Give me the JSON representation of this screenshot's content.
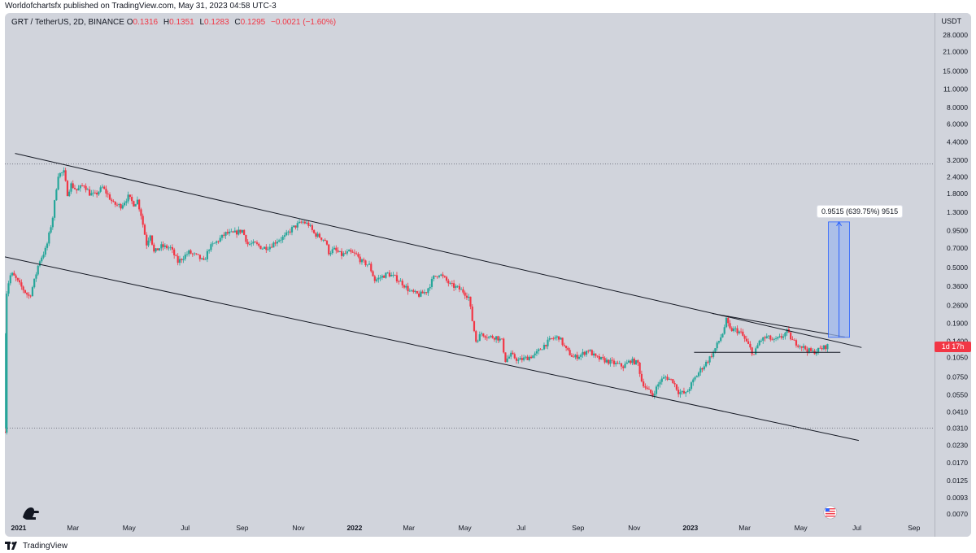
{
  "publisher_line": "Worldofchartsfx published on TradingView.com, May 31, 2023 04:58 UTC-3",
  "footer_text": "TradingView",
  "icons": {
    "footer_logo": "tradingview-logo-icon",
    "chart_logo": "dinosaur-logo-icon",
    "flag": "us-flag-icon"
  },
  "colors": {
    "up": "#26a69a",
    "down": "#f23645",
    "chart_bg": "#d1d4dc",
    "trendline": "#131722",
    "measure_fill": "#9fb8ec",
    "measure_line": "#2962ff"
  },
  "chart_data": {
    "type": "candlestick",
    "symbol_line": {
      "symbol": "GRT / TetherUS, 2D, BINANCE",
      "open_label": "O",
      "open": "0.1316",
      "high_label": "H",
      "high": "0.1351",
      "low_label": "L",
      "low": "0.1283",
      "close_label": "C",
      "close": "0.1295",
      "change": "−0.0021 (−1.60%)"
    },
    "currency": "USDT",
    "y_scale": "log",
    "y_ticks": [
      "28.0000",
      "21.0000",
      "15.0000",
      "11.0000",
      "8.0000",
      "6.0000",
      "4.4000",
      "3.2000",
      "2.4000",
      "1.8000",
      "1.3000",
      "0.9500",
      "0.7000",
      "0.5000",
      "0.3600",
      "0.2600",
      "0.1900",
      "0.1400",
      "0.1050",
      "0.0750",
      "0.0550",
      "0.0410",
      "0.0310",
      "0.0230",
      "0.0170",
      "0.0125",
      "0.0093",
      "0.0070"
    ],
    "x_ticks": [
      "2021",
      "Mar",
      "May",
      "Jul",
      "Sep",
      "Nov",
      "2022",
      "Mar",
      "May",
      "Jul",
      "Sep",
      "Nov",
      "2023",
      "Mar",
      "May",
      "Jul",
      "Sep"
    ],
    "x_tick_dates": [
      "2021-01-01",
      "2021-03-01",
      "2021-05-01",
      "2021-07-01",
      "2021-09-01",
      "2021-11-01",
      "2022-01-01",
      "2022-03-01",
      "2022-05-01",
      "2022-07-01",
      "2022-09-01",
      "2022-11-01",
      "2023-01-01",
      "2023-03-01",
      "2023-05-01",
      "2023-07-01",
      "2023-09-01"
    ],
    "x_range": [
      "2020-12-17",
      "2023-09-18"
    ],
    "last_price_badge": "1d 17h",
    "horizontal_levels": [
      3.0,
      0.031
    ],
    "trendlines": [
      {
        "from": [
          "2020-12-28",
          3.6
        ],
        "to": [
          "2023-07-06",
          0.125
        ]
      },
      {
        "from": [
          "2020-12-17",
          0.6
        ],
        "to": [
          "2023-07-03",
          0.025
        ]
      },
      {
        "from": [
          "2023-01-25",
          0.225
        ],
        "to": [
          "2023-06-18",
          0.15
        ]
      },
      {
        "from": [
          "2023-01-05",
          0.115
        ],
        "to": [
          "2023-06-13",
          0.115
        ]
      }
    ],
    "measure_projection": {
      "label": "0.9515 (639.75%) 9515",
      "from_date": "2023-05-31",
      "to_date": "2023-06-23",
      "from_price": 0.149,
      "to_price": 1.1
    },
    "price_path": [
      [
        "2020-12-17",
        0.03
      ],
      [
        "2020-12-18",
        0.3
      ],
      [
        "2020-12-22",
        0.42
      ],
      [
        "2020-12-24",
        0.45
      ],
      [
        "2020-12-28",
        0.42
      ],
      [
        "2021-01-01",
        0.38
      ],
      [
        "2021-01-09",
        0.32
      ],
      [
        "2021-01-13",
        0.3
      ],
      [
        "2021-01-19",
        0.42
      ],
      [
        "2021-01-23",
        0.55
      ],
      [
        "2021-01-31",
        0.7
      ],
      [
        "2021-02-04",
        0.95
      ],
      [
        "2021-02-07",
        1.2
      ],
      [
        "2021-02-11",
        2.0
      ],
      [
        "2021-02-13",
        2.5
      ],
      [
        "2021-02-19",
        2.6
      ],
      [
        "2021-02-23",
        1.8
      ],
      [
        "2021-02-27",
        2.1
      ],
      [
        "2021-03-05",
        1.9
      ],
      [
        "2021-03-13",
        2.1
      ],
      [
        "2021-03-19",
        1.8
      ],
      [
        "2021-03-25",
        1.75
      ],
      [
        "2021-04-02",
        2.0
      ],
      [
        "2021-04-08",
        1.75
      ],
      [
        "2021-04-14",
        1.5
      ],
      [
        "2021-04-22",
        1.45
      ],
      [
        "2021-04-30",
        1.7
      ],
      [
        "2021-05-06",
        1.5
      ],
      [
        "2021-05-10",
        1.6
      ],
      [
        "2021-05-14",
        1.25
      ],
      [
        "2021-05-20",
        0.75
      ],
      [
        "2021-05-24",
        0.9
      ],
      [
        "2021-05-28",
        0.65
      ],
      [
        "2021-06-05",
        0.72
      ],
      [
        "2021-06-15",
        0.7
      ],
      [
        "2021-06-23",
        0.55
      ],
      [
        "2021-06-29",
        0.6
      ],
      [
        "2021-07-05",
        0.65
      ],
      [
        "2021-07-15",
        0.6
      ],
      [
        "2021-07-21",
        0.55
      ],
      [
        "2021-07-27",
        0.7
      ],
      [
        "2021-08-06",
        0.8
      ],
      [
        "2021-08-14",
        0.9
      ],
      [
        "2021-08-22",
        0.9
      ],
      [
        "2021-09-01",
        0.95
      ],
      [
        "2021-09-07",
        0.75
      ],
      [
        "2021-09-15",
        0.75
      ],
      [
        "2021-09-23",
        0.7
      ],
      [
        "2021-10-01",
        0.72
      ],
      [
        "2021-10-09",
        0.8
      ],
      [
        "2021-10-17",
        0.85
      ],
      [
        "2021-10-25",
        0.98
      ],
      [
        "2021-10-31",
        1.05
      ],
      [
        "2021-11-06",
        1.1
      ],
      [
        "2021-11-12",
        1.05
      ],
      [
        "2021-11-18",
        0.9
      ],
      [
        "2021-11-24",
        0.85
      ],
      [
        "2021-11-30",
        0.8
      ],
      [
        "2021-12-04",
        0.65
      ],
      [
        "2021-12-10",
        0.68
      ],
      [
        "2021-12-18",
        0.62
      ],
      [
        "2021-12-26",
        0.65
      ],
      [
        "2022-01-03",
        0.62
      ],
      [
        "2022-01-09",
        0.55
      ],
      [
        "2022-01-17",
        0.52
      ],
      [
        "2022-01-23",
        0.4
      ],
      [
        "2022-01-29",
        0.42
      ],
      [
        "2022-02-06",
        0.45
      ],
      [
        "2022-02-14",
        0.42
      ],
      [
        "2022-02-22",
        0.38
      ],
      [
        "2022-03-02",
        0.33
      ],
      [
        "2022-03-12",
        0.31
      ],
      [
        "2022-03-20",
        0.33
      ],
      [
        "2022-03-28",
        0.42
      ],
      [
        "2022-04-03",
        0.45
      ],
      [
        "2022-04-09",
        0.41
      ],
      [
        "2022-04-15",
        0.37
      ],
      [
        "2022-04-23",
        0.35
      ],
      [
        "2022-04-29",
        0.33
      ],
      [
        "2022-05-05",
        0.3
      ],
      [
        "2022-05-09",
        0.2
      ],
      [
        "2022-05-13",
        0.14
      ],
      [
        "2022-05-19",
        0.16
      ],
      [
        "2022-05-27",
        0.15
      ],
      [
        "2022-06-04",
        0.15
      ],
      [
        "2022-06-10",
        0.14
      ],
      [
        "2022-06-14",
        0.1
      ],
      [
        "2022-06-20",
        0.11
      ],
      [
        "2022-06-28",
        0.1
      ],
      [
        "2022-07-08",
        0.105
      ],
      [
        "2022-07-16",
        0.11
      ],
      [
        "2022-07-26",
        0.13
      ],
      [
        "2022-08-03",
        0.145
      ],
      [
        "2022-08-11",
        0.15
      ],
      [
        "2022-08-19",
        0.12
      ],
      [
        "2022-08-27",
        0.105
      ],
      [
        "2022-09-04",
        0.11
      ],
      [
        "2022-09-12",
        0.12
      ],
      [
        "2022-09-20",
        0.105
      ],
      [
        "2022-09-30",
        0.1
      ],
      [
        "2022-10-10",
        0.095
      ],
      [
        "2022-10-20",
        0.09
      ],
      [
        "2022-10-28",
        0.1
      ],
      [
        "2022-11-05",
        0.095
      ],
      [
        "2022-11-09",
        0.07
      ],
      [
        "2022-11-15",
        0.06
      ],
      [
        "2022-11-21",
        0.055
      ],
      [
        "2022-11-29",
        0.07
      ],
      [
        "2022-12-05",
        0.075
      ],
      [
        "2022-12-13",
        0.07
      ],
      [
        "2022-12-19",
        0.058
      ],
      [
        "2022-12-27",
        0.056
      ],
      [
        "2023-01-04",
        0.07
      ],
      [
        "2023-01-12",
        0.085
      ],
      [
        "2023-01-20",
        0.1
      ],
      [
        "2023-01-26",
        0.115
      ],
      [
        "2023-02-01",
        0.14
      ],
      [
        "2023-02-05",
        0.16
      ],
      [
        "2023-02-09",
        0.2
      ],
      [
        "2023-02-13",
        0.17
      ],
      [
        "2023-02-19",
        0.17
      ],
      [
        "2023-02-25",
        0.16
      ],
      [
        "2023-03-05",
        0.13
      ],
      [
        "2023-03-11",
        0.11
      ],
      [
        "2023-03-17",
        0.14
      ],
      [
        "2023-03-25",
        0.15
      ],
      [
        "2023-04-02",
        0.14
      ],
      [
        "2023-04-10",
        0.15
      ],
      [
        "2023-04-16",
        0.165
      ],
      [
        "2023-04-22",
        0.14
      ],
      [
        "2023-04-30",
        0.13
      ],
      [
        "2023-05-08",
        0.12
      ],
      [
        "2023-05-14",
        0.115
      ],
      [
        "2023-05-20",
        0.12
      ],
      [
        "2023-05-26",
        0.125
      ],
      [
        "2023-05-31",
        0.13
      ]
    ]
  }
}
